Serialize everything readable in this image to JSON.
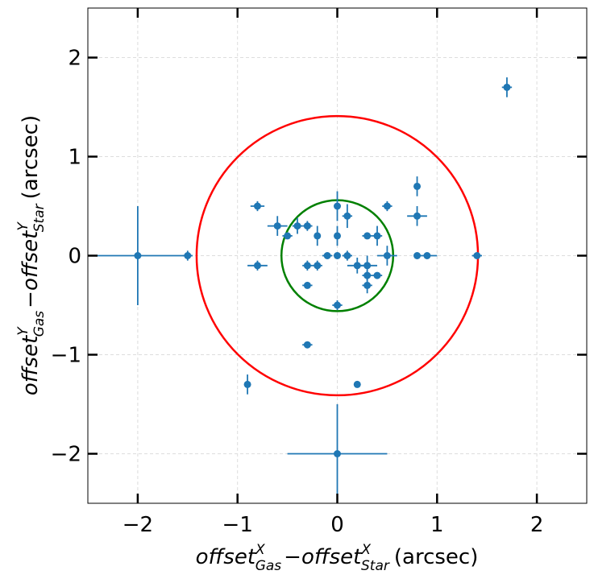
{
  "chart_data": {
    "type": "scatter",
    "title": "",
    "xlabel": {
      "main_a": "offset",
      "sup_a": "X",
      "sub_a": "Gas",
      "minus": "−",
      "main_b": "offset",
      "sup_b": "X",
      "sub_b": "Star",
      "unit": "(arcsec)"
    },
    "ylabel": {
      "main_a": "offset",
      "sup_a": "Y",
      "sub_a": "Gas",
      "minus": "−",
      "main_b": "offset",
      "sup_b": "Y",
      "sub_b": "Star",
      "unit": "(arcsec)"
    },
    "xlim": [
      -2.5,
      2.5
    ],
    "ylim": [
      -2.5,
      2.5
    ],
    "xticks": [
      -2,
      -1,
      0,
      1,
      2
    ],
    "yticks": [
      -2,
      -1,
      0,
      1,
      2
    ],
    "xtick_labels": [
      "−2",
      "−1",
      "0",
      "1",
      "2"
    ],
    "ytick_labels": [
      "−2",
      "−1",
      "0",
      "1",
      "2"
    ],
    "grid": true,
    "colors": {
      "points": "#1f77b4",
      "outer_circle": "#ff0000",
      "inner_circle": "#008000",
      "grid": "#dddddd",
      "axes": "#000000"
    },
    "circles": [
      {
        "name": "outer-circle",
        "center": [
          0,
          0
        ],
        "radius": 1.41,
        "color": "#ff0000"
      },
      {
        "name": "inner-circle",
        "center": [
          0,
          0
        ],
        "radius": 0.56,
        "color": "#008000"
      }
    ],
    "points": [
      {
        "x": 1.7,
        "y": 1.7,
        "xerr": 0.05,
        "yerr": 0.1
      },
      {
        "x": -0.8,
        "y": 0.5,
        "xerr": 0.07,
        "yerr": 0.05
      },
      {
        "x": 0.0,
        "y": 0.5,
        "xerr": 0.0,
        "yerr": 0.15
      },
      {
        "x": 0.5,
        "y": 0.5,
        "xerr": 0.05,
        "yerr": 0.05
      },
      {
        "x": 0.8,
        "y": 0.7,
        "xerr": 0.0,
        "yerr": 0.1
      },
      {
        "x": 0.1,
        "y": 0.4,
        "xerr": 0.05,
        "yerr": 0.12
      },
      {
        "x": 0.8,
        "y": 0.4,
        "xerr": 0.1,
        "yerr": 0.1
      },
      {
        "x": -0.6,
        "y": 0.3,
        "xerr": 0.1,
        "yerr": 0.1
      },
      {
        "x": -0.4,
        "y": 0.3,
        "xerr": 0.05,
        "yerr": 0.08
      },
      {
        "x": -0.3,
        "y": 0.3,
        "xerr": 0.05,
        "yerr": 0.05
      },
      {
        "x": -0.5,
        "y": 0.2,
        "xerr": 0.05,
        "yerr": 0.0
      },
      {
        "x": -0.2,
        "y": 0.2,
        "xerr": 0.0,
        "yerr": 0.1
      },
      {
        "x": 0.0,
        "y": 0.2,
        "xerr": 0.0,
        "yerr": 0.1
      },
      {
        "x": 0.3,
        "y": 0.2,
        "xerr": 0.05,
        "yerr": 0.0
      },
      {
        "x": 0.4,
        "y": 0.2,
        "xerr": 0.05,
        "yerr": 0.1
      },
      {
        "x": -2.0,
        "y": 0.0,
        "xerr": 0.5,
        "yerr": 0.5
      },
      {
        "x": -1.5,
        "y": 0.0,
        "xerr": 0.05,
        "yerr": 0.05
      },
      {
        "x": -0.1,
        "y": 0.0,
        "xerr": 0.05,
        "yerr": 0.0
      },
      {
        "x": 0.0,
        "y": 0.0,
        "xerr": 0.0,
        "yerr": 0.0
      },
      {
        "x": 0.1,
        "y": 0.0,
        "xerr": 0.05,
        "yerr": 0.05
      },
      {
        "x": 0.5,
        "y": 0.0,
        "xerr": 0.1,
        "yerr": 0.1
      },
      {
        "x": 0.8,
        "y": 0.0,
        "xerr": 0.0,
        "yerr": 0.0
      },
      {
        "x": 0.9,
        "y": 0.0,
        "xerr": 0.1,
        "yerr": 0.0
      },
      {
        "x": 1.4,
        "y": 0.0,
        "xerr": 0.05,
        "yerr": 0.0
      },
      {
        "x": -0.8,
        "y": -0.1,
        "xerr": 0.1,
        "yerr": 0.05
      },
      {
        "x": -0.3,
        "y": -0.1,
        "xerr": 0.05,
        "yerr": 0.05
      },
      {
        "x": -0.2,
        "y": -0.1,
        "xerr": 0.05,
        "yerr": 0.05
      },
      {
        "x": 0.2,
        "y": -0.1,
        "xerr": 0.1,
        "yerr": 0.08
      },
      {
        "x": 0.3,
        "y": -0.1,
        "xerr": 0.1,
        "yerr": 0.1
      },
      {
        "x": 0.3,
        "y": -0.2,
        "xerr": 0.05,
        "yerr": 0.05
      },
      {
        "x": 0.4,
        "y": -0.2,
        "xerr": 0.05,
        "yerr": 0.0
      },
      {
        "x": -0.3,
        "y": -0.3,
        "xerr": 0.05,
        "yerr": 0.0
      },
      {
        "x": 0.3,
        "y": -0.3,
        "xerr": 0.05,
        "yerr": 0.08
      },
      {
        "x": 0.0,
        "y": -0.5,
        "xerr": 0.05,
        "yerr": 0.05
      },
      {
        "x": -0.3,
        "y": -0.9,
        "xerr": 0.05,
        "yerr": 0.0
      },
      {
        "x": -0.9,
        "y": -1.3,
        "xerr": 0.0,
        "yerr": 0.1
      },
      {
        "x": 0.2,
        "y": -1.3,
        "xerr": 0.0,
        "yerr": 0.0
      },
      {
        "x": 0.0,
        "y": -2.0,
        "xerr": 0.5,
        "yerr": 0.5
      }
    ]
  }
}
